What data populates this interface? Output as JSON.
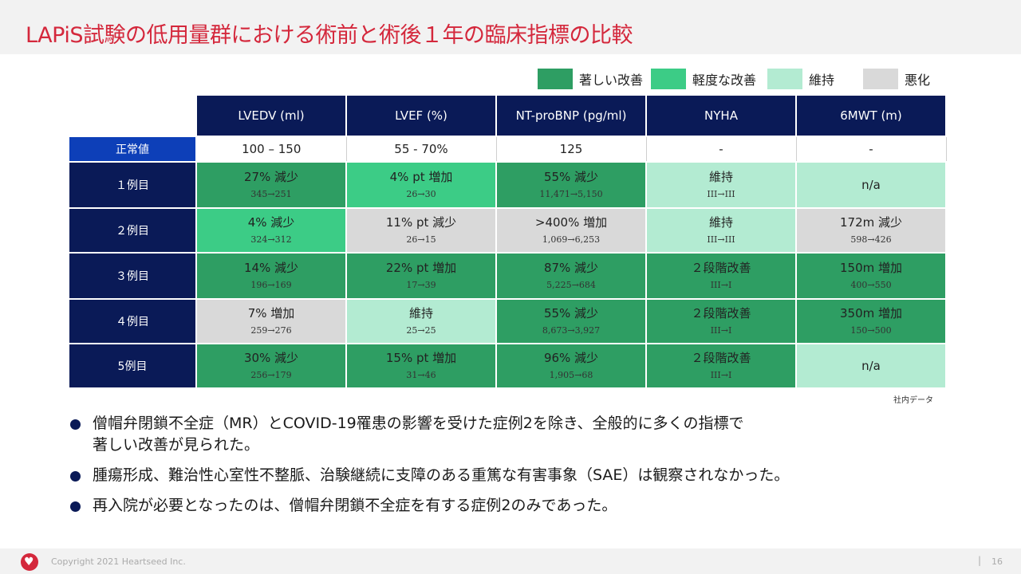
{
  "title": "LAPiS試験の低用量群における術前と術後１年の臨床指標の比較",
  "legend": [
    {
      "label": "著しい改善",
      "color": "#2e9e63"
    },
    {
      "label": "軽度な改善",
      "color": "#3ccc86"
    },
    {
      "label": "維持",
      "color": "#b3ebd2"
    },
    {
      "label": "悪化",
      "color": "#d9d9d9"
    }
  ],
  "colors": {
    "著しい改善": "#2e9e63",
    "軽度な改善": "#3ccc86",
    "維持": "#b3ebd2",
    "悪化": "#d9d9d9"
  },
  "table": {
    "columns": [
      "LVEDV (ml)",
      "LVEF (%)",
      "NT-proBNP (pg/ml)",
      "NYHA",
      "6MWT (m)"
    ],
    "normal": {
      "label": "正常値",
      "values": [
        "100 – 150",
        "55 - 70%",
        "125",
        "-",
        "-"
      ]
    },
    "rows": [
      {
        "label": "１例目",
        "cells": [
          {
            "main": "27% 減少",
            "sub": "345→251",
            "status": "著しい改善"
          },
          {
            "main": "4% pt 増加",
            "sub": "26→30",
            "status": "軽度な改善"
          },
          {
            "main": "55% 減少",
            "sub": "11,471→5,150",
            "status": "著しい改善"
          },
          {
            "main": "維持",
            "sub": "III→III",
            "status": "維持"
          },
          {
            "main": "n/a",
            "sub": "",
            "status": "維持"
          }
        ]
      },
      {
        "label": "２例目",
        "cells": [
          {
            "main": "4% 減少",
            "sub": "324→312",
            "status": "軽度な改善"
          },
          {
            "main": "11% pt 減少",
            "sub": "26→15",
            "status": "悪化"
          },
          {
            "main": ">400% 増加",
            "sub": "1,069→6,253",
            "status": "悪化"
          },
          {
            "main": "維持",
            "sub": "III→III",
            "status": "維持"
          },
          {
            "main": "172m 減少",
            "sub": "598→426",
            "status": "悪化"
          }
        ]
      },
      {
        "label": "３例目",
        "cells": [
          {
            "main": "14% 減少",
            "sub": "196→169",
            "status": "著しい改善"
          },
          {
            "main": "22% pt 増加",
            "sub": "17→39",
            "status": "著しい改善"
          },
          {
            "main": "87% 減少",
            "sub": "5,225→684",
            "status": "著しい改善"
          },
          {
            "main": "２段階改善",
            "sub": "III→I",
            "status": "著しい改善"
          },
          {
            "main": "150m 増加",
            "sub": "400→550",
            "status": "著しい改善"
          }
        ]
      },
      {
        "label": "４例目",
        "cells": [
          {
            "main": "7% 増加",
            "sub": "259→276",
            "status": "悪化"
          },
          {
            "main": "維持",
            "sub": "25→25",
            "status": "維持"
          },
          {
            "main": "55% 減少",
            "sub": "8,673→3,927",
            "status": "著しい改善"
          },
          {
            "main": "２段階改善",
            "sub": "III→I",
            "status": "著しい改善"
          },
          {
            "main": "350m 増加",
            "sub": "150→500",
            "status": "著しい改善"
          }
        ]
      },
      {
        "label": "5例目",
        "cells": [
          {
            "main": "30% 減少",
            "sub": "256→179",
            "status": "著しい改善"
          },
          {
            "main": "15% pt 増加",
            "sub": "31→46",
            "status": "著しい改善"
          },
          {
            "main": "96% 減少",
            "sub": "1,905→68",
            "status": "著しい改善"
          },
          {
            "main": "２段階改善",
            "sub": "III→I",
            "status": "著しい改善"
          },
          {
            "main": "n/a",
            "sub": "",
            "status": "維持"
          }
        ]
      }
    ]
  },
  "note": "社内データ",
  "bullets": [
    {
      "line1": "僧帽弁閉鎖不全症（MR）とCOVID-19罹患の影響を受けた症例2を除き、全般的に多くの指標で",
      "line2": "著しい改善が見られた。"
    },
    {
      "line1": "腫瘍形成、難治性心室性不整脈、治験継続に支障のある重篤な有害事象（SAE）は観察されなかった。",
      "line2": ""
    },
    {
      "line1": "再入院が必要となったのは、僧帽弁閉鎖不全症を有する症例2のみであった。",
      "line2": ""
    }
  ],
  "footer": {
    "logo_icon": "heart-icon",
    "copyright": "Copyright 2021 Heartseed Inc.",
    "separator": "|",
    "page": "16"
  }
}
